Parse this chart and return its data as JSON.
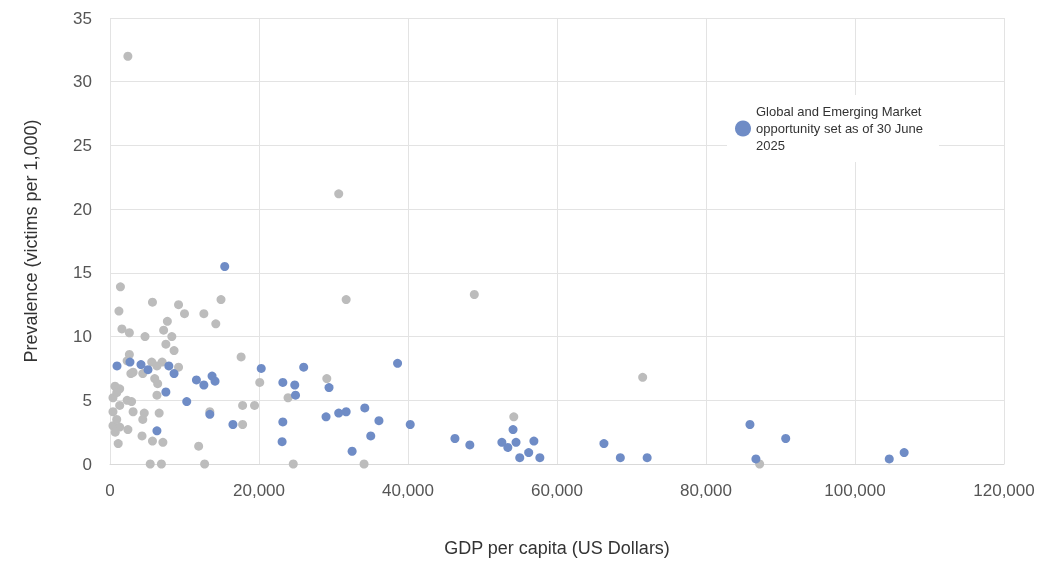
{
  "chart_data": {
    "type": "scatter",
    "xlabel": "GDP per capita (US Dollars)",
    "ylabel": "Prevalence (victims per 1,000)",
    "xlim": [
      0,
      120000
    ],
    "xticks": [
      0,
      {
        "value": 20000,
        "label": "20,000"
      },
      {
        "value": 40000,
        "label": "40,000"
      },
      {
        "value": 60000,
        "label": "60,000"
      },
      {
        "value": 80000,
        "label": "80,000"
      },
      {
        "value": 100000,
        "label": "100,000"
      },
      {
        "value": 120000,
        "label": "120,000"
      }
    ],
    "ylim": [
      0,
      35
    ],
    "yticks": [
      0,
      5,
      10,
      15,
      20,
      25,
      30,
      35
    ],
    "grid": true,
    "legend": "top right",
    "marker": "circle",
    "series": [
      {
        "color": "#bcbcbc",
        "x": [
          2400,
          30700,
          31700,
          48900,
          29100,
          54200,
          34100,
          71500,
          87200,
          1400,
          5700,
          9200,
          1200,
          10000,
          12600,
          14900,
          7700,
          14200,
          1600,
          2600,
          4700,
          7200,
          8300,
          7500,
          8600,
          2600,
          17600,
          2300,
          5600,
          7000,
          9200,
          3100,
          4400,
          6000,
          6400,
          20100,
          670,
          1300,
          6300,
          23900,
          400,
          2300,
          2900,
          17800,
          19400,
          400,
          3100,
          4600,
          6600,
          13400,
          4400,
          400,
          1300,
          2400,
          17800,
          4300,
          5700,
          7100,
          1100,
          11900,
          5400,
          6900,
          12700,
          24600,
          900,
          1300,
          900,
          700,
          6300,
          2800
        ],
        "values": [
          32.0,
          21.2,
          12.9,
          13.3,
          6.7,
          3.7,
          0,
          6.8,
          0,
          13.9,
          12.7,
          12.5,
          12.0,
          11.8,
          11.8,
          12.9,
          11.2,
          11.0,
          10.6,
          10.3,
          10.0,
          10.5,
          10.0,
          9.4,
          8.9,
          8.6,
          8.4,
          8.1,
          8.0,
          8.0,
          7.6,
          7.2,
          7.1,
          6.7,
          6.3,
          6.4,
          6.1,
          5.9,
          5.4,
          5.2,
          5.2,
          5.0,
          4.9,
          4.6,
          4.6,
          4.1,
          4.1,
          4.0,
          4.0,
          4.1,
          3.5,
          3.0,
          2.9,
          2.7,
          3.1,
          2.2,
          1.8,
          1.7,
          1.6,
          1.4,
          0,
          0,
          0,
          0,
          5.6,
          4.6,
          3.5,
          2.5,
          7.7,
          7.1
        ]
      },
      {
        "name": "Global and Emerging Market opportunity set as of 30 June 2025",
        "color": "#6f8cc6",
        "x": [
          940,
          2680,
          4160,
          5100,
          7900,
          8600,
          7500,
          6300,
          10300,
          11600,
          12600,
          13700,
          14100,
          13400,
          15400,
          16500,
          20300,
          23200,
          24800,
          24900,
          23200,
          23100,
          26000,
          29400,
          29000,
          30700,
          31700,
          34200,
          36100,
          32500,
          35000,
          38600,
          40300,
          46300,
          48300,
          52600,
          53400,
          54100,
          54500,
          55000,
          56200,
          56900,
          57700,
          66300,
          68500,
          72100,
          85900,
          86700,
          90700,
          104600,
          106600
        ],
        "values": [
          7.7,
          8.0,
          7.8,
          7.4,
          7.7,
          7.1,
          5.65,
          2.6,
          4.9,
          6.6,
          6.2,
          6.9,
          6.5,
          3.9,
          15.5,
          3.1,
          7.5,
          6.4,
          6.2,
          5.4,
          3.3,
          1.75,
          7.6,
          6.0,
          3.7,
          4.0,
          4.1,
          4.4,
          3.4,
          1.0,
          2.2,
          7.9,
          3.1,
          2.0,
          1.5,
          1.7,
          1.3,
          2.7,
          1.7,
          0.5,
          0.9,
          1.8,
          0.5,
          1.6,
          0.5,
          0.5,
          3.1,
          0.4,
          2.0,
          0.4,
          0.9
        ]
      }
    ]
  }
}
